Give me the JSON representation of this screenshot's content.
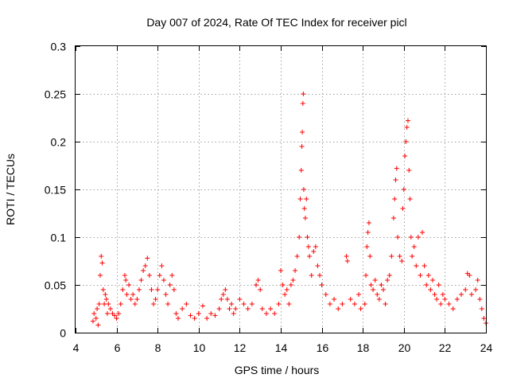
{
  "chart_data": {
    "type": "scatter",
    "title": "Day 007 of 2024, Rate Of TEC Index for receiver picl",
    "xlabel": "GPS time / hours",
    "ylabel": "ROTI / TECUs",
    "xlim": [
      4,
      24
    ],
    "ylim": [
      0,
      0.3
    ],
    "xticks": [
      4,
      6,
      8,
      10,
      12,
      14,
      16,
      18,
      20,
      22,
      24
    ],
    "xtick_labels": [
      "4",
      "6",
      "8",
      "10",
      "12",
      "14",
      "16",
      "18",
      "20",
      "22",
      "24"
    ],
    "yticks": [
      0,
      0.05,
      0.1,
      0.15,
      0.2,
      0.25,
      0.3
    ],
    "ytick_labels": [
      "0",
      "0.05",
      "0.1",
      "0.15",
      "0.2",
      "0.25",
      "0.3"
    ],
    "grid": true,
    "marker": "+",
    "color": "#ff0000",
    "series": [
      {
        "name": "ROTI",
        "points": [
          [
            4.85,
            0.012
          ],
          [
            4.9,
            0.02
          ],
          [
            5.0,
            0.015
          ],
          [
            5.05,
            0.025
          ],
          [
            5.1,
            0.008
          ],
          [
            5.15,
            0.03
          ],
          [
            5.2,
            0.06
          ],
          [
            5.25,
            0.08
          ],
          [
            5.3,
            0.073
          ],
          [
            5.35,
            0.045
          ],
          [
            5.4,
            0.03
          ],
          [
            5.45,
            0.04
          ],
          [
            5.5,
            0.035
          ],
          [
            5.55,
            0.02
          ],
          [
            5.6,
            0.03
          ],
          [
            5.7,
            0.025
          ],
          [
            5.8,
            0.02
          ],
          [
            5.9,
            0.018
          ],
          [
            6.0,
            0.015
          ],
          [
            6.1,
            0.02
          ],
          [
            6.2,
            0.03
          ],
          [
            6.3,
            0.045
          ],
          [
            6.4,
            0.06
          ],
          [
            6.45,
            0.055
          ],
          [
            6.5,
            0.04
          ],
          [
            6.6,
            0.05
          ],
          [
            6.7,
            0.035
          ],
          [
            6.8,
            0.04
          ],
          [
            6.9,
            0.03
          ],
          [
            7.0,
            0.035
          ],
          [
            7.1,
            0.045
          ],
          [
            7.2,
            0.055
          ],
          [
            7.3,
            0.065
          ],
          [
            7.4,
            0.07
          ],
          [
            7.5,
            0.078
          ],
          [
            7.6,
            0.06
          ],
          [
            7.7,
            0.045
          ],
          [
            7.8,
            0.03
          ],
          [
            7.9,
            0.035
          ],
          [
            8.0,
            0.045
          ],
          [
            8.1,
            0.06
          ],
          [
            8.2,
            0.07
          ],
          [
            8.3,
            0.055
          ],
          [
            8.4,
            0.04
          ],
          [
            8.5,
            0.03
          ],
          [
            8.6,
            0.05
          ],
          [
            8.7,
            0.06
          ],
          [
            8.8,
            0.045
          ],
          [
            8.9,
            0.02
          ],
          [
            9.0,
            0.015
          ],
          [
            9.2,
            0.025
          ],
          [
            9.4,
            0.03
          ],
          [
            9.6,
            0.018
          ],
          [
            9.8,
            0.015
          ],
          [
            10.0,
            0.02
          ],
          [
            10.2,
            0.028
          ],
          [
            10.4,
            0.015
          ],
          [
            10.6,
            0.02
          ],
          [
            10.8,
            0.018
          ],
          [
            11.0,
            0.025
          ],
          [
            11.1,
            0.035
          ],
          [
            11.2,
            0.04
          ],
          [
            11.3,
            0.045
          ],
          [
            11.4,
            0.035
          ],
          [
            11.5,
            0.025
          ],
          [
            11.6,
            0.03
          ],
          [
            11.7,
            0.02
          ],
          [
            11.8,
            0.025
          ],
          [
            12.0,
            0.035
          ],
          [
            12.2,
            0.03
          ],
          [
            12.4,
            0.025
          ],
          [
            12.6,
            0.03
          ],
          [
            12.8,
            0.05
          ],
          [
            12.9,
            0.055
          ],
          [
            13.0,
            0.045
          ],
          [
            13.1,
            0.025
          ],
          [
            13.3,
            0.02
          ],
          [
            13.5,
            0.025
          ],
          [
            13.7,
            0.02
          ],
          [
            13.9,
            0.03
          ],
          [
            14.0,
            0.065
          ],
          [
            14.1,
            0.05
          ],
          [
            14.2,
            0.04
          ],
          [
            14.3,
            0.045
          ],
          [
            14.4,
            0.03
          ],
          [
            14.5,
            0.05
          ],
          [
            14.6,
            0.055
          ],
          [
            14.7,
            0.065
          ],
          [
            14.8,
            0.08
          ],
          [
            14.9,
            0.1
          ],
          [
            14.95,
            0.14
          ],
          [
            15.0,
            0.17
          ],
          [
            15.03,
            0.195
          ],
          [
            15.05,
            0.21
          ],
          [
            15.08,
            0.24
          ],
          [
            15.1,
            0.25
          ],
          [
            15.12,
            0.15
          ],
          [
            15.15,
            0.13
          ],
          [
            15.2,
            0.12
          ],
          [
            15.25,
            0.14
          ],
          [
            15.3,
            0.1
          ],
          [
            15.35,
            0.09
          ],
          [
            15.4,
            0.08
          ],
          [
            15.5,
            0.06
          ],
          [
            15.6,
            0.085
          ],
          [
            15.7,
            0.09
          ],
          [
            15.8,
            0.07
          ],
          [
            15.9,
            0.06
          ],
          [
            16.0,
            0.05
          ],
          [
            16.2,
            0.04
          ],
          [
            16.4,
            0.03
          ],
          [
            16.6,
            0.035
          ],
          [
            16.8,
            0.025
          ],
          [
            17.0,
            0.03
          ],
          [
            17.2,
            0.08
          ],
          [
            17.25,
            0.075
          ],
          [
            17.4,
            0.035
          ],
          [
            17.6,
            0.03
          ],
          [
            17.8,
            0.04
          ],
          [
            17.9,
            0.025
          ],
          [
            18.1,
            0.03
          ],
          [
            18.15,
            0.06
          ],
          [
            18.2,
            0.09
          ],
          [
            18.25,
            0.105
          ],
          [
            18.3,
            0.115
          ],
          [
            18.35,
            0.08
          ],
          [
            18.4,
            0.05
          ],
          [
            18.5,
            0.045
          ],
          [
            18.6,
            0.055
          ],
          [
            18.7,
            0.04
          ],
          [
            18.8,
            0.035
          ],
          [
            18.9,
            0.05
          ],
          [
            19.0,
            0.045
          ],
          [
            19.1,
            0.03
          ],
          [
            19.2,
            0.055
          ],
          [
            19.3,
            0.06
          ],
          [
            19.4,
            0.08
          ],
          [
            19.5,
            0.12
          ],
          [
            19.55,
            0.14
          ],
          [
            19.6,
            0.16
          ],
          [
            19.65,
            0.172
          ],
          [
            19.7,
            0.1
          ],
          [
            19.8,
            0.08
          ],
          [
            19.9,
            0.075
          ],
          [
            19.95,
            0.13
          ],
          [
            20.0,
            0.15
          ],
          [
            20.05,
            0.185
          ],
          [
            20.1,
            0.2
          ],
          [
            20.15,
            0.215
          ],
          [
            20.2,
            0.222
          ],
          [
            20.25,
            0.17
          ],
          [
            20.3,
            0.14
          ],
          [
            20.35,
            0.1
          ],
          [
            20.4,
            0.08
          ],
          [
            20.5,
            0.09
          ],
          [
            20.6,
            0.07
          ],
          [
            20.7,
            0.1
          ],
          [
            20.8,
            0.06
          ],
          [
            20.9,
            0.105
          ],
          [
            21.0,
            0.07
          ],
          [
            21.1,
            0.05
          ],
          [
            21.2,
            0.06
          ],
          [
            21.3,
            0.045
          ],
          [
            21.4,
            0.055
          ],
          [
            21.5,
            0.04
          ],
          [
            21.6,
            0.035
          ],
          [
            21.7,
            0.05
          ],
          [
            21.8,
            0.03
          ],
          [
            21.9,
            0.04
          ],
          [
            22.0,
            0.035
          ],
          [
            22.2,
            0.03
          ],
          [
            22.4,
            0.025
          ],
          [
            22.6,
            0.035
          ],
          [
            22.8,
            0.04
          ],
          [
            23.0,
            0.045
          ],
          [
            23.1,
            0.062
          ],
          [
            23.2,
            0.06
          ],
          [
            23.3,
            0.04
          ],
          [
            23.5,
            0.045
          ],
          [
            23.6,
            0.055
          ],
          [
            23.7,
            0.035
          ],
          [
            23.8,
            0.025
          ],
          [
            23.9,
            0.015
          ],
          [
            24.0,
            0.01
          ]
        ]
      }
    ]
  }
}
